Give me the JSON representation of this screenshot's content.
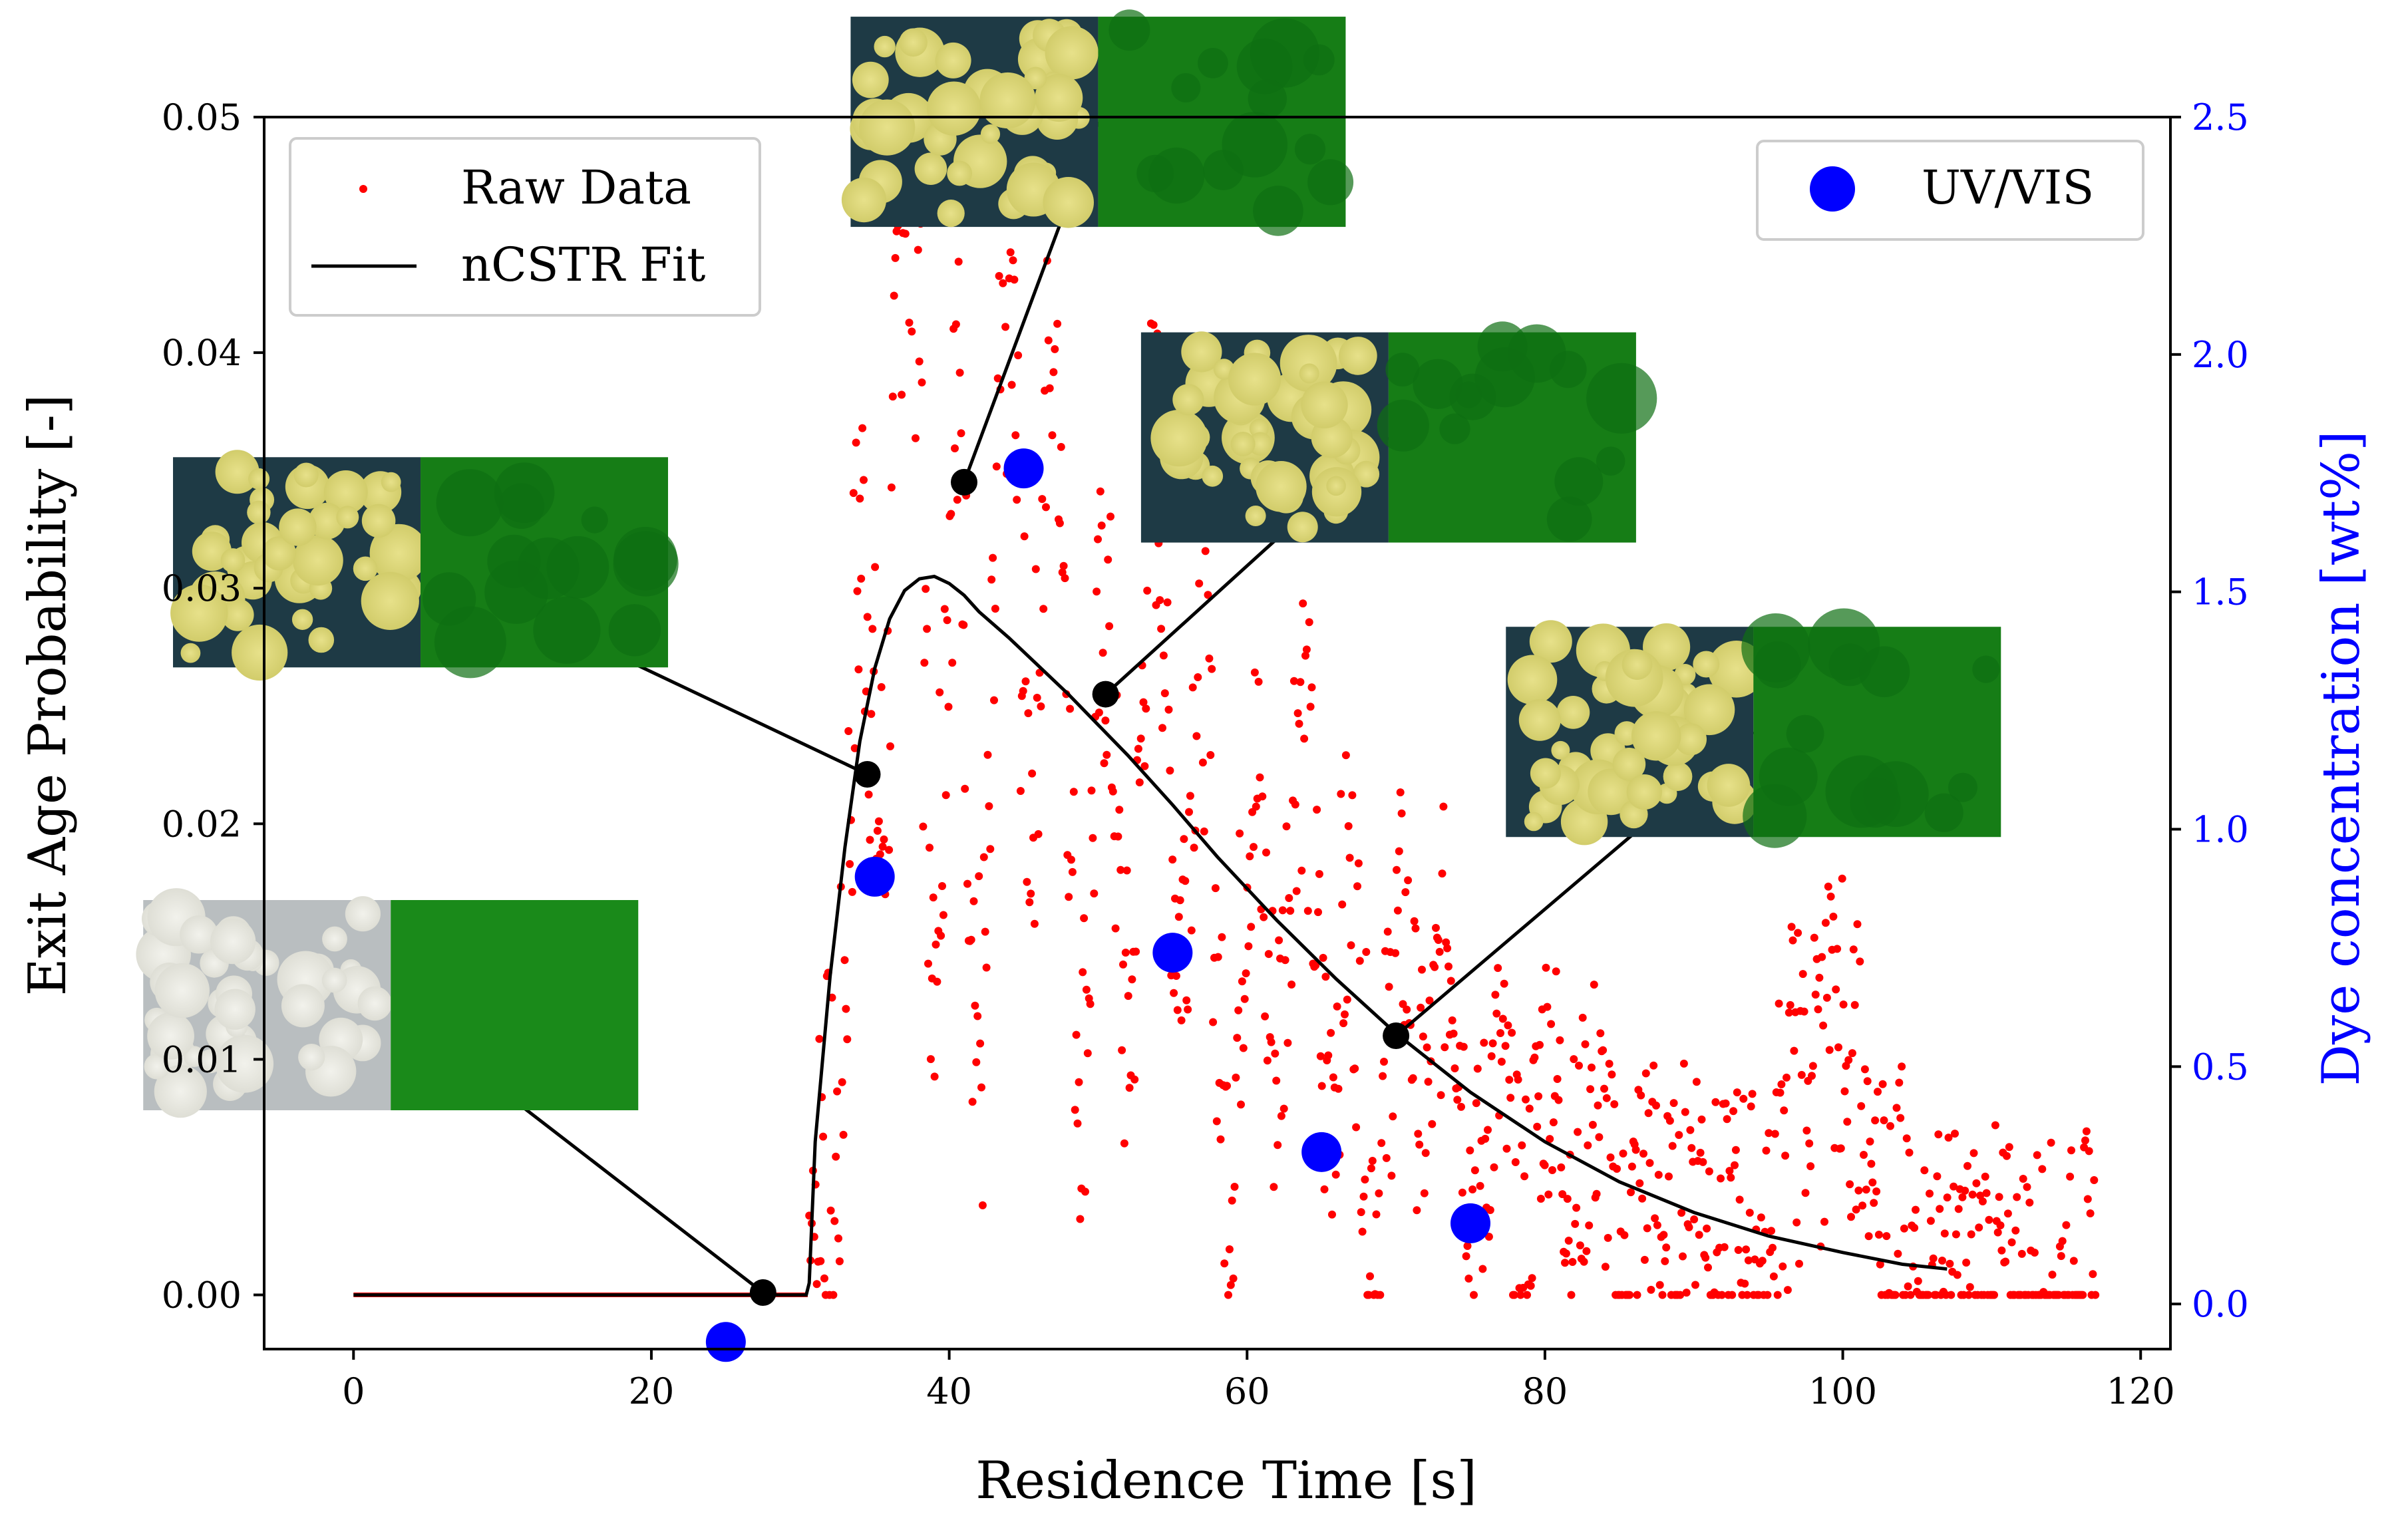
{
  "chart_data": {
    "type": "scatter",
    "title": "",
    "xlabel": "Residence Time [s]",
    "ylabel": "Exit Age Probability [-]",
    "y2label": "Dye concentration [wt%]",
    "xlim": [
      -6,
      122
    ],
    "ylim": [
      -0.0023,
      0.05
    ],
    "y2lim": [
      -0.095,
      2.5
    ],
    "xticks": [
      "0",
      "20",
      "40",
      "60",
      "80",
      "100",
      "120"
    ],
    "yticks": [
      "0.00",
      "0.01",
      "0.02",
      "0.03",
      "0.04",
      "0.05"
    ],
    "y2ticks": [
      "0.0",
      "0.5",
      "1.0",
      "1.5",
      "2.0",
      "2.5"
    ],
    "colors": {
      "raw": "#ff0000",
      "fit": "#000000",
      "uv": "#0000ff",
      "secondary_axis": "#0000ff"
    },
    "legend_left": {
      "position": "upper-left",
      "entries": [
        "Raw Data",
        "nCSTR Fit"
      ]
    },
    "legend_right": {
      "position": "upper-right",
      "entries": [
        "UV/VIS"
      ]
    },
    "series": [
      {
        "name": "Raw Data",
        "kind": "scatter",
        "note": "approx. 1100 noisy sampled points; zero before ~30.5 s, dense cloud peaking ~0.047 near 37 s, decaying to 0-0.02 up to 117 s",
        "baseline_x": [
          0,
          30.5
        ]
      },
      {
        "name": "nCSTR Fit",
        "kind": "line",
        "x": [
          0,
          30.4,
          30.6,
          31,
          32,
          33,
          34,
          35,
          36,
          37,
          38,
          39,
          40,
          41,
          42,
          44,
          46,
          48,
          50,
          52,
          55,
          58,
          62,
          66,
          70,
          75,
          80,
          85,
          90,
          95,
          100,
          104,
          107
        ],
        "y": [
          0,
          0,
          0.0005,
          0.0065,
          0.0135,
          0.019,
          0.0235,
          0.0266,
          0.0287,
          0.0299,
          0.0304,
          0.0305,
          0.0302,
          0.0297,
          0.029,
          0.0279,
          0.0267,
          0.0255,
          0.0242,
          0.0229,
          0.0208,
          0.0186,
          0.0159,
          0.0134,
          0.0111,
          0.0086,
          0.0065,
          0.0048,
          0.0035,
          0.0025,
          0.0018,
          0.0013,
          0.0011
        ]
      },
      {
        "name": "UV/VIS",
        "kind": "scatter",
        "axis": "right",
        "x": [
          25,
          35,
          45,
          55,
          65,
          75
        ],
        "y": [
          -0.08,
          0.9,
          1.76,
          0.74,
          0.32,
          0.17
        ]
      }
    ],
    "annotations": [
      {
        "name": "sample-25s",
        "marker": [
          27.5,
          0.0001
        ],
        "image_center": [
          2.5,
          0.0123
        ]
      },
      {
        "name": "sample-35s",
        "marker": [
          34.5,
          0.0221
        ],
        "image_center": [
          4.5,
          0.0311
        ]
      },
      {
        "name": "sample-41s",
        "marker": [
          41,
          0.0345
        ],
        "image_center": [
          50,
          0.0498
        ]
      },
      {
        "name": "sample-51s",
        "marker": [
          50.5,
          0.0255
        ],
        "image_center": [
          69.5,
          0.0364
        ]
      },
      {
        "name": "sample-70s",
        "marker": [
          70,
          0.011
        ],
        "image_center": [
          94,
          0.0239
        ]
      }
    ]
  }
}
